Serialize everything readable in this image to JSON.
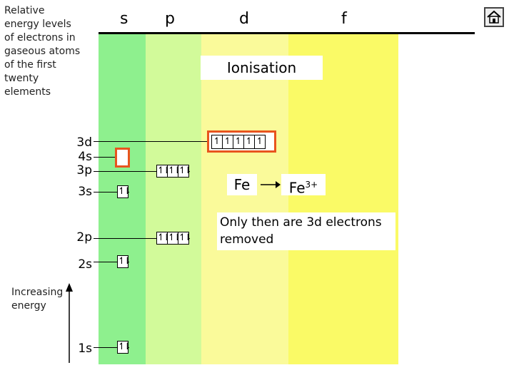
{
  "title_text": "Relative energy levels of electrons in gaseous atoms of the first twenty elements",
  "columns": {
    "s": "s",
    "p": "p",
    "d": "d",
    "f": "f"
  },
  "levels": {
    "3d": "3d",
    "4s": "4s",
    "3p": "3p",
    "3s": "3s",
    "2p": "2p",
    "2s": "2s",
    "1s": "1s"
  },
  "ionisation_label": "Ionisation",
  "reaction": {
    "reactant": "Fe",
    "product": "Fe",
    "product_charge": "3+"
  },
  "note": "Only then are 3d electrons removed",
  "axis_label": "Increasing energy",
  "orbitals": {
    "s_paired": "↿⇂",
    "p_paired": "↿⇂",
    "d_single": "↿"
  },
  "colors": {
    "s": "#8ef08e",
    "p": "#d2fa9a",
    "d": "#fafa9a",
    "f": "#fafa66",
    "highlight": "#e8541e"
  },
  "home_button": {
    "icon": "home-icon"
  }
}
